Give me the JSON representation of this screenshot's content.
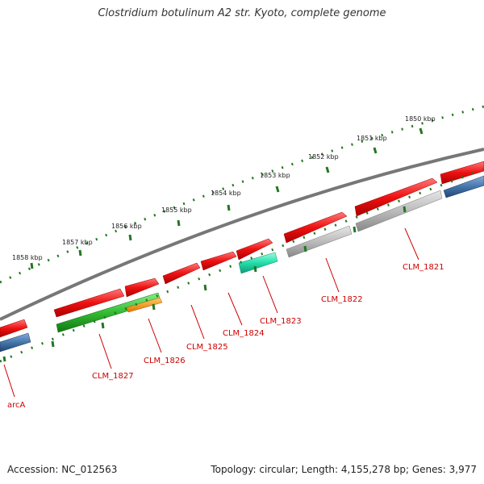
{
  "title": "Clostridium botulinum A2 str. Kyoto, complete genome",
  "footer": {
    "accession": "Accession: NC_012563",
    "summary": "Topology: circular; Length: 4,155,278 bp; Genes: 3,977"
  },
  "scale_labels": [
    "1850 kbp",
    "1851 kbp",
    "1852 kbp",
    "1853 kbp",
    "1854 kbp",
    "1855 kbp",
    "1856 kbp",
    "1857 kbp",
    "1858 kbp"
  ],
  "gene_labels": [
    "CLM_1821",
    "CLM_1822",
    "CLM_1823",
    "CLM_1824",
    "CLM_1825",
    "CLM_1826",
    "CLM_1827",
    "arcA"
  ],
  "colors": {
    "cds_forward": "#ee1111",
    "cds_reverse_grey": "#bbbbbb",
    "cds_blue": "#4477aa",
    "cds_green": "#33bb33",
    "cds_orange": "#ff9900",
    "cds_teal": "#22ddaa",
    "backbone": "#777777",
    "ticks": "#227722",
    "label": "#cc0000"
  }
}
